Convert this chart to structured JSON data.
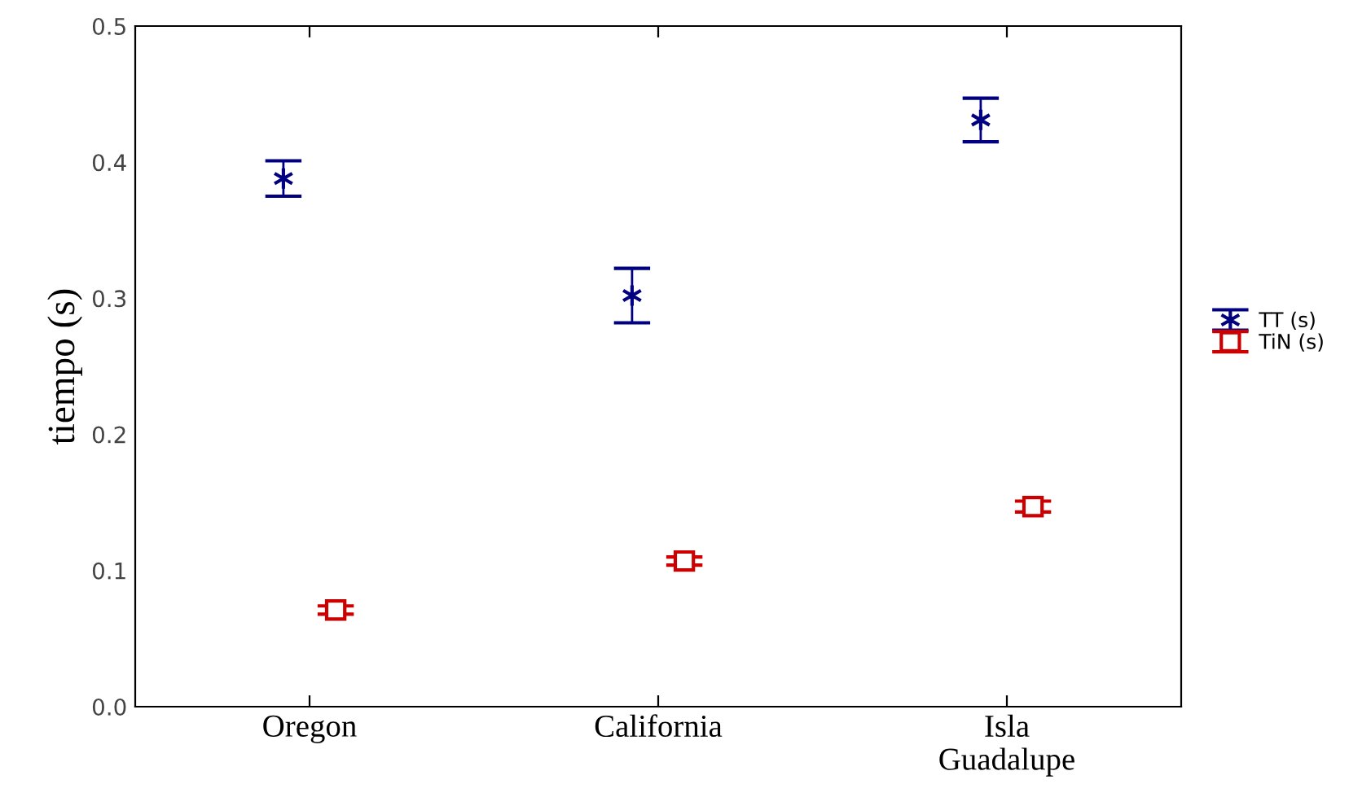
{
  "chart_data": {
    "type": "scatter",
    "ylabel": "tiempo (s)",
    "categories": [
      "Oregon",
      "California",
      "Isla\nGuadalupe"
    ],
    "series": [
      {
        "name": "TT (s)",
        "color": "#000080",
        "marker": "cross",
        "values": [
          0.388,
          0.302,
          0.431
        ],
        "errors": [
          0.013,
          0.02,
          0.016
        ]
      },
      {
        "name": "TiN (s)",
        "color": "#cc0000",
        "marker": "square",
        "values": [
          0.071,
          0.107,
          0.147
        ],
        "errors": [
          0.003,
          0.003,
          0.004
        ]
      }
    ],
    "ylim": [
      0,
      0.5
    ],
    "yticks": [
      {
        "value": 0,
        "label": "0.0"
      },
      0.1,
      0.2,
      0.3,
      0.4,
      0.5
    ],
    "grid": false,
    "legend": "right"
  }
}
